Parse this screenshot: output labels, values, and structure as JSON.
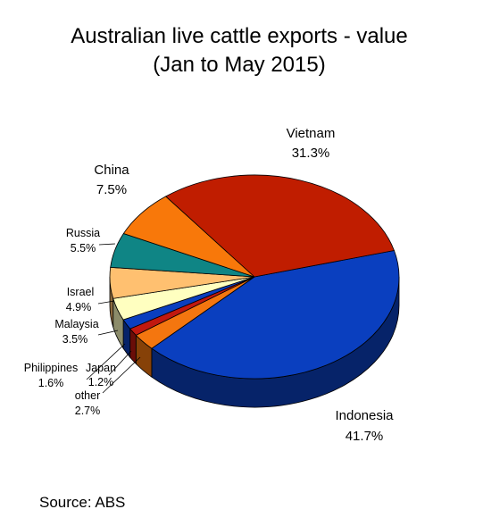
{
  "chart_data": {
    "type": "pie",
    "title_line1": "Australian live cattle exports - value",
    "title_line2": "(Jan to May 2015)",
    "slices": [
      {
        "name": "Indonesia",
        "value": 41.7,
        "label": "41.7%",
        "color": "#0a3fbf"
      },
      {
        "name": "other",
        "value": 2.7,
        "label": "2.7%",
        "color": "#f4760f"
      },
      {
        "name": "Japan",
        "value": 1.2,
        "label": "1.2%",
        "color": "#c0180f"
      },
      {
        "name": "Philippines",
        "value": 1.6,
        "label": "1.6%",
        "color": "#0a3fbf"
      },
      {
        "name": "Malaysia",
        "value": 3.5,
        "label": "3.5%",
        "color": "#ffffc0"
      },
      {
        "name": "Israel",
        "value": 4.9,
        "label": "4.9%",
        "color": "#ffc070"
      },
      {
        "name": "Russia",
        "value": 5.5,
        "label": "5.5%",
        "color": "#0f8585"
      },
      {
        "name": "China",
        "value": 7.5,
        "label": "7.5%",
        "color": "#f8780a"
      },
      {
        "name": "Vietnam",
        "value": 31.3,
        "label": "31.3%",
        "color": "#c01d00"
      }
    ],
    "source": "Source: ABS"
  }
}
